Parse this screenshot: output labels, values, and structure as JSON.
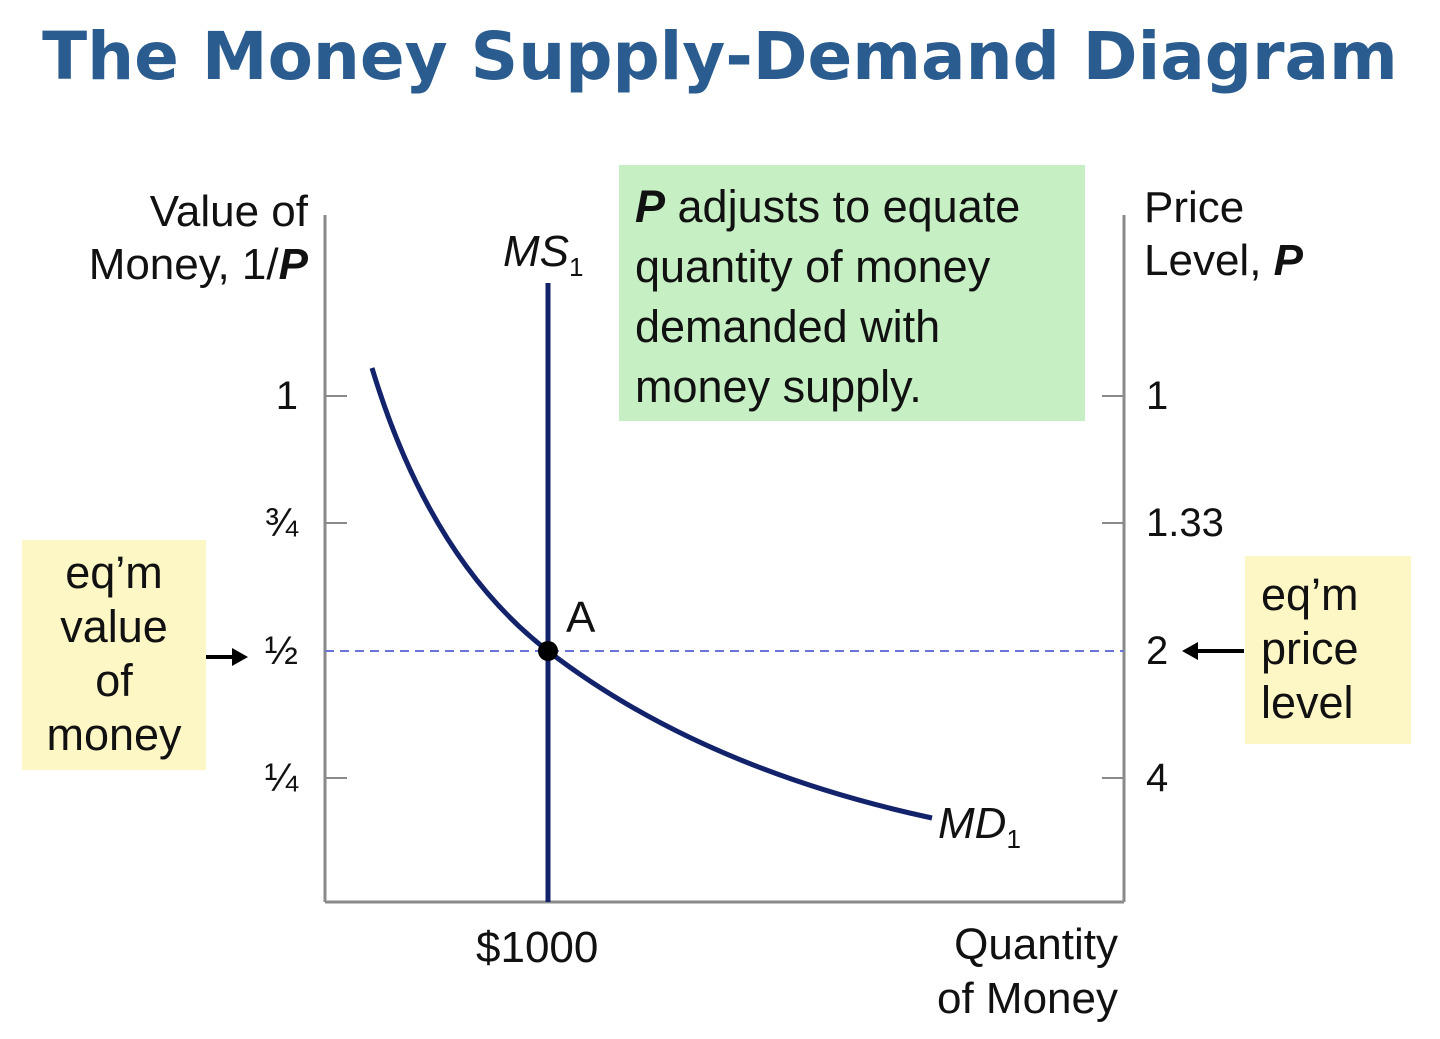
{
  "title": "The Money Supply-Demand Diagram",
  "left_axis": {
    "line1": "Value of",
    "line2": "Money, 1/",
    "var": "P",
    "ticks": [
      "1",
      "¾",
      "½",
      "¼"
    ]
  },
  "right_axis": {
    "line1": "Price",
    "line2": "Level, ",
    "var": "P",
    "ticks": [
      "1",
      "1.33",
      "2",
      "4"
    ]
  },
  "x_axis": {
    "tick": "$1000",
    "line1": "Quantity",
    "line2": "of Money"
  },
  "curves": {
    "ms": {
      "name": "MS",
      "sub": "1"
    },
    "md": {
      "name": "MD",
      "sub": "1"
    }
  },
  "equilibrium_point": "A",
  "note": {
    "var": "P",
    "text": " adjusts to equate quantity of money demanded with money supply."
  },
  "left_box": {
    "lines": [
      "eq’m",
      "value",
      "of",
      "money"
    ]
  },
  "right_box": {
    "lines": [
      "eq’m",
      "price",
      "level"
    ]
  },
  "colors": {
    "title": "#2a5c8f",
    "curve": "#13236b",
    "dashed": "#6b74d8",
    "note_bg": "#c6f0c4",
    "box_bg": "#fdf7c6"
  },
  "chart_data": {
    "type": "line",
    "title": "The Money Supply-Demand Diagram",
    "xlabel": "Quantity of Money",
    "ylabel_left": "Value of Money, 1/P",
    "ylabel_right": "Price Level, P",
    "left_ticks": [
      1,
      0.75,
      0.5,
      0.25
    ],
    "right_ticks": [
      1,
      1.33,
      2,
      4
    ],
    "series": [
      {
        "name": "MS1",
        "kind": "vertical",
        "x": 1000
      },
      {
        "name": "MD1",
        "kind": "demand curve",
        "passes_through": {
          "x": 1000,
          "y": 0.5
        }
      }
    ],
    "equilibrium": {
      "label": "A",
      "quantity": 1000,
      "value_of_money": 0.5,
      "price_level": 2
    }
  }
}
